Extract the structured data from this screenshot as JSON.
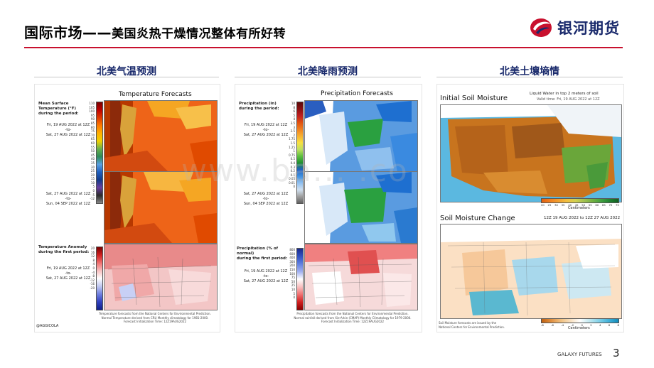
{
  "header": {
    "title_main": "国际市场——",
    "title_sub": "美国炎热干燥情况整体有所好转",
    "brand": "银河期货",
    "colors": {
      "brand_red": "#c8102e",
      "brand_blue": "#1a2a6c"
    }
  },
  "columns": [
    {
      "title": "北美气温预测"
    },
    {
      "title": "北美降雨预测"
    },
    {
      "title": "北美土壤墒情"
    }
  ],
  "temp_panel": {
    "title": "Temperature Forecasts",
    "scale_label": "Mean Surface Temperature (°F)\nduring the period:",
    "ticks": [
      "110",
      "105",
      "100",
      "95",
      "90",
      "85",
      "80",
      "75",
      "70",
      "65",
      "60",
      "55",
      "50",
      "45",
      "40",
      "35",
      "30",
      "25",
      "20",
      "15",
      "10",
      "5",
      "0",
      "-5",
      "-12"
    ],
    "period1": "Fri, 19 AUG 2022 at 12Z\n-to-\nSat, 27 AUG 2022 at 12Z",
    "period2": "Sat, 27 AUG 2022 at 12Z\n-to-\nSun, 04 SEP 2022 at 12Z",
    "anomaly_label": "Temperature Anomaly\nduring the first period:",
    "anomaly_ticks": [
      "20",
      "16",
      "12",
      "8",
      "4",
      "0",
      "-4",
      "-8",
      "-12",
      "-16",
      "-20"
    ],
    "period3": "Fri, 19 AUG 2022 at 12Z\n-to-\nSat, 27 AUG 2022 at 12Z",
    "footnote": "Temperature forecasts from the National Centers for Environmental Prediction.\nNormal Temperature derived from CRU Monthly climatology for 1981-2000.\nForecast Initialization Time: 12Z19AUG2022",
    "credit": "@AGGICOLA"
  },
  "precip_panel": {
    "title": "Precipitation Forecasts",
    "scale_label": "Precipitation (in)\nduring the period:",
    "ticks": [
      "10",
      "8",
      "6",
      "5",
      "4",
      "3.5",
      "3",
      "2.5",
      "2",
      "1.75",
      "1.5",
      "1.25",
      "1",
      "0.75",
      "0.5",
      "0.4",
      "0.3",
      "0.2",
      "0.1",
      "0.05",
      "0.01",
      "0"
    ],
    "period1": "Fri, 19 AUG 2022 at 12Z\n-to-\nSat, 27 AUG 2022 at 12Z",
    "period2": "Sat, 27 AUG 2022 at 12Z\n-to-\nSun, 04 SEP 2022 at 12Z",
    "anomaly_label": "Precipitation (% of normal)\nduring the first period:",
    "anomaly_ticks": [
      "800",
      "600",
      "400",
      "300",
      "200",
      "150",
      "100",
      "75",
      "50",
      "25",
      "10",
      "5",
      "0"
    ],
    "period3": "Fri, 19 AUG 2022 at 12Z\n-to-\nSat, 27 AUG 2022 at 12Z",
    "footnote": "Precipitation forecasts from the National Centers for Environmental Prediction.\nNormal rainfall derived from Xie-Arkin (CMAP) Monthly Climatology for 1979-2000.\nForecast Initialization Time: 12Z19AUG2022"
  },
  "soil_panel": {
    "title1": "Initial Soil Moisture",
    "subtitle1": "Liquid Water in top 2 meters of soil",
    "valid": "Valid time: Fri, 19 AUG 2022 at 12Z",
    "legend1_ticks": [
      "20",
      "25",
      "30",
      "35",
      "40",
      "45",
      "50",
      "55",
      "60",
      "65",
      "70",
      "75"
    ],
    "legend1_unit": "Centimeters",
    "title2": "Soil Moisture Change",
    "subtitle2": "12Z 19 AUG 2022 to 12Z 27 AUG 2022",
    "legend2_ticks": [
      "-8",
      "-6",
      "-4",
      "-2",
      "0",
      "2",
      "4",
      "6",
      "8"
    ],
    "legend2_unit": "Centimeters",
    "footnote": "Soil Moisture forecasts are issued by the\nNational Centers for Environmental Prediction."
  },
  "watermark": "www.ba...   .co",
  "footer": {
    "company": "GALAXY FUTURES",
    "page": "3"
  }
}
